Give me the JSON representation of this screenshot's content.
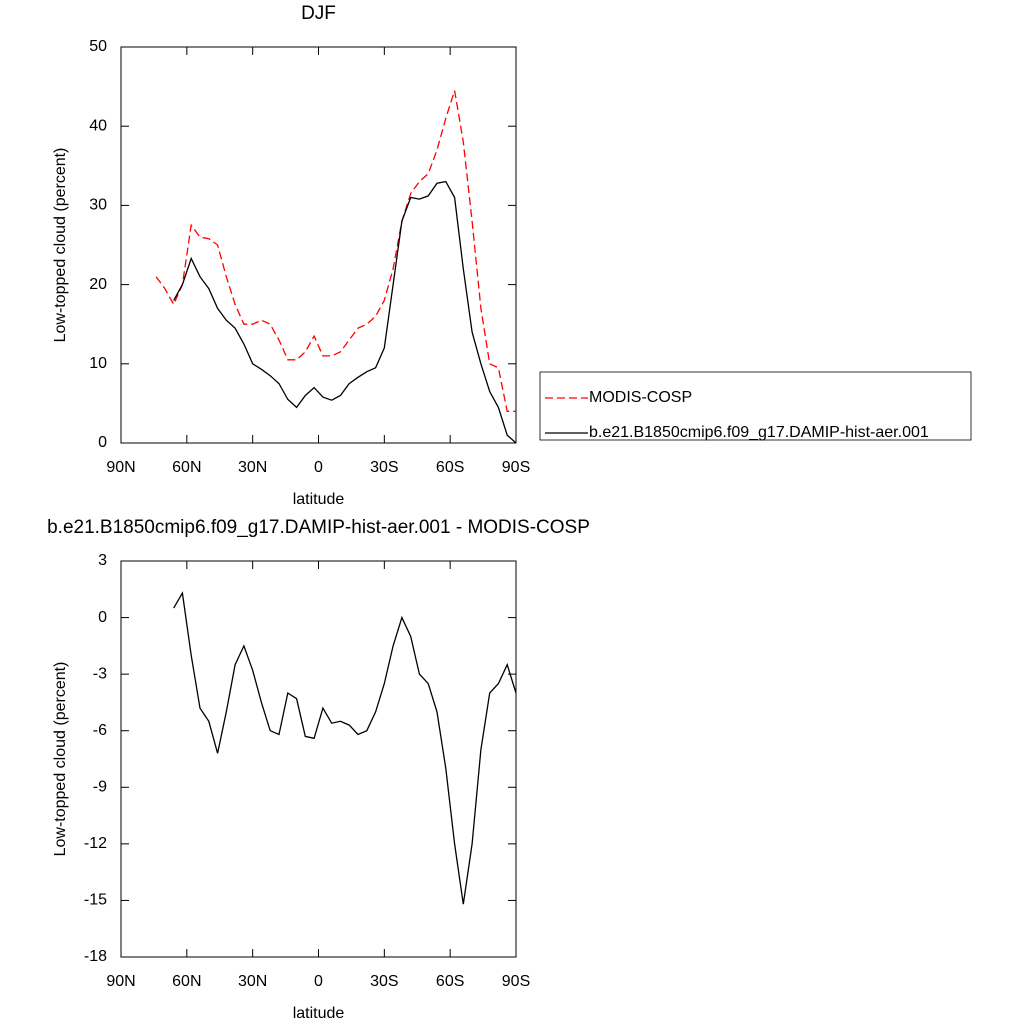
{
  "chart_data": [
    {
      "type": "line",
      "title": "DJF",
      "xlabel": "latitude",
      "ylabel": "Low-topped cloud (percent)",
      "x": [
        74,
        70,
        66,
        62,
        58,
        54,
        50,
        46,
        42,
        38,
        34,
        30,
        26,
        22,
        18,
        14,
        10,
        6,
        2,
        -2,
        -6,
        -10,
        -14,
        -18,
        -22,
        -26,
        -30,
        -34,
        -38,
        -42,
        -46,
        -50,
        -54,
        -58,
        -62,
        -66,
        -70,
        -74,
        -78,
        -82,
        -86,
        -90
      ],
      "xlim": [
        90,
        -90
      ],
      "xticks": [
        {
          "value": 90,
          "label": "90N"
        },
        {
          "value": 60,
          "label": "60N"
        },
        {
          "value": 30,
          "label": "30N"
        },
        0,
        {
          "value": -30,
          "label": "30S"
        },
        {
          "value": -60,
          "label": "60S"
        },
        {
          "value": -90,
          "label": "90S"
        }
      ],
      "ylim": [
        0,
        50
      ],
      "yticks": [
        0,
        10,
        20,
        30,
        40,
        50
      ],
      "legend": "right",
      "series": [
        {
          "name": "MODIS-COSP",
          "color": "#ff0000",
          "style": "dashed",
          "values": [
            21,
            19.5,
            17.5,
            20,
            27.5,
            26,
            25.8,
            25,
            21,
            17.5,
            15,
            15,
            15.5,
            15,
            13,
            10.5,
            10.5,
            11.5,
            13.5,
            11,
            11,
            11.5,
            13,
            14.5,
            15,
            16,
            18,
            22,
            28,
            31.5,
            33,
            34,
            37,
            41,
            44.5,
            38,
            28,
            17,
            10,
            9.5,
            4,
            4
          ]
        },
        {
          "name": "b.e21.B1850cmip6.f09_g17.DAMIP-hist-aer.001",
          "color": "#000000",
          "style": "solid",
          "values": [
            null,
            null,
            18,
            20,
            23.3,
            21,
            19.5,
            17,
            15.5,
            14.5,
            12.5,
            10,
            9.3,
            8.5,
            7.5,
            5.5,
            4.5,
            6,
            7,
            5.8,
            5.4,
            6,
            7.5,
            8.3,
            9,
            9.5,
            12,
            20,
            28,
            31,
            30.8,
            31.2,
            32.8,
            33,
            31,
            22,
            14,
            10,
            6.5,
            4.5,
            1,
            0
          ]
        }
      ]
    },
    {
      "type": "line",
      "title": "b.e21.B1850cmip6.f09_g17.DAMIP-hist-aer.001 - MODIS-COSP",
      "xlabel": "latitude",
      "ylabel": "Low-topped cloud (percent)",
      "x": [
        74,
        70,
        66,
        62,
        58,
        54,
        50,
        46,
        42,
        38,
        34,
        30,
        26,
        22,
        18,
        14,
        10,
        6,
        2,
        -2,
        -6,
        -10,
        -14,
        -18,
        -22,
        -26,
        -30,
        -34,
        -38,
        -42,
        -46,
        -50,
        -54,
        -58,
        -62,
        -66,
        -70,
        -74,
        -78,
        -82,
        -86,
        -90
      ],
      "xlim": [
        90,
        -90
      ],
      "xticks": [
        {
          "value": 90,
          "label": "90N"
        },
        {
          "value": 60,
          "label": "60N"
        },
        {
          "value": 30,
          "label": "30N"
        },
        0,
        {
          "value": -30,
          "label": "30S"
        },
        {
          "value": -60,
          "label": "60S"
        },
        {
          "value": -90,
          "label": "90S"
        }
      ],
      "ylim": [
        -18,
        3
      ],
      "yticks": [
        -18,
        -15,
        -12,
        -9,
        -6,
        -3,
        0,
        3
      ],
      "series": [
        {
          "color": "#000000",
          "style": "solid",
          "values": [
            null,
            null,
            0.5,
            1.3,
            -2,
            -4.8,
            -5.5,
            -7.2,
            -5,
            -2.5,
            -1.5,
            -2.8,
            -4.5,
            -6,
            -6.2,
            -4,
            -4.3,
            -6.3,
            -6.4,
            -4.8,
            -5.6,
            -5.5,
            -5.7,
            -6.2,
            -6,
            -5,
            -3.5,
            -1.5,
            0,
            -1,
            -3,
            -3.5,
            -5,
            -8,
            -12,
            -15.2,
            -12,
            -7,
            -4,
            -3.5,
            -2.5,
            -4
          ]
        }
      ]
    }
  ]
}
